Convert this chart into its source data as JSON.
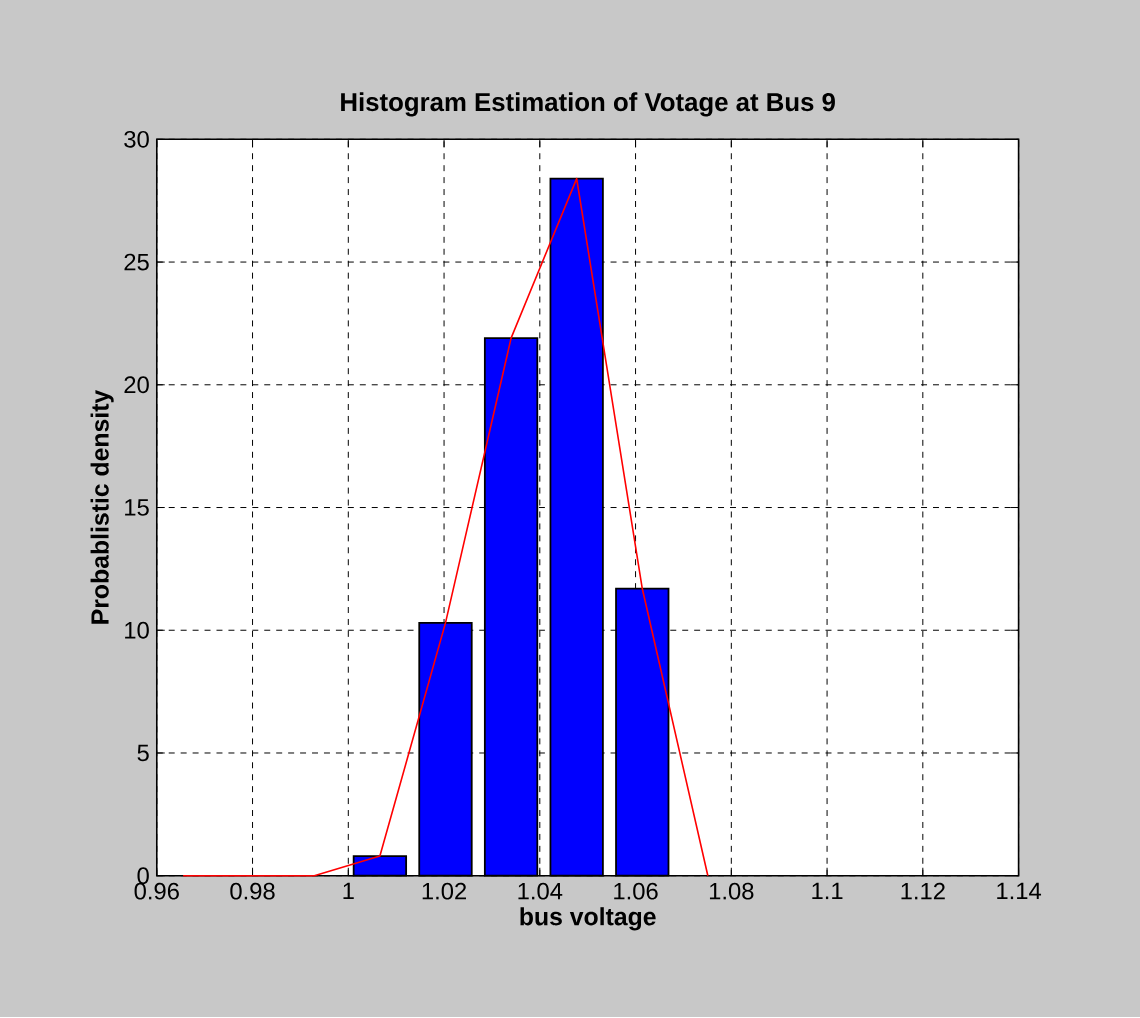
{
  "chart_data": {
    "type": "bar",
    "title": "Histogram Estimation of Votage at Bus 9",
    "xlabel": "bus voltage",
    "ylabel": "Probablistic density",
    "xlim": [
      0.96,
      1.14
    ],
    "xticks": [
      0.96,
      0.98,
      1,
      1.02,
      1.04,
      1.06,
      1.08,
      1.1,
      1.12,
      1.14
    ],
    "ylim": [
      0,
      30
    ],
    "yticks": [
      0,
      5,
      10,
      15,
      20,
      25,
      30
    ],
    "grid": true,
    "series": [
      {
        "color": "#0000ff",
        "x": [
          1.0066,
          1.0203,
          1.034,
          1.0477,
          1.0614
        ],
        "values": [
          0.8,
          10.3,
          21.9,
          28.4,
          11.7
        ]
      },
      {
        "type": "line",
        "color": "#ff0000",
        "x": [
          0.9655,
          0.9792,
          0.9929,
          1.0066,
          1.0203,
          1.034,
          1.0477,
          1.0614,
          1.0751
        ],
        "values": [
          0,
          0,
          0,
          0.8,
          10.3,
          21.9,
          28.4,
          11.7,
          0
        ]
      }
    ]
  }
}
